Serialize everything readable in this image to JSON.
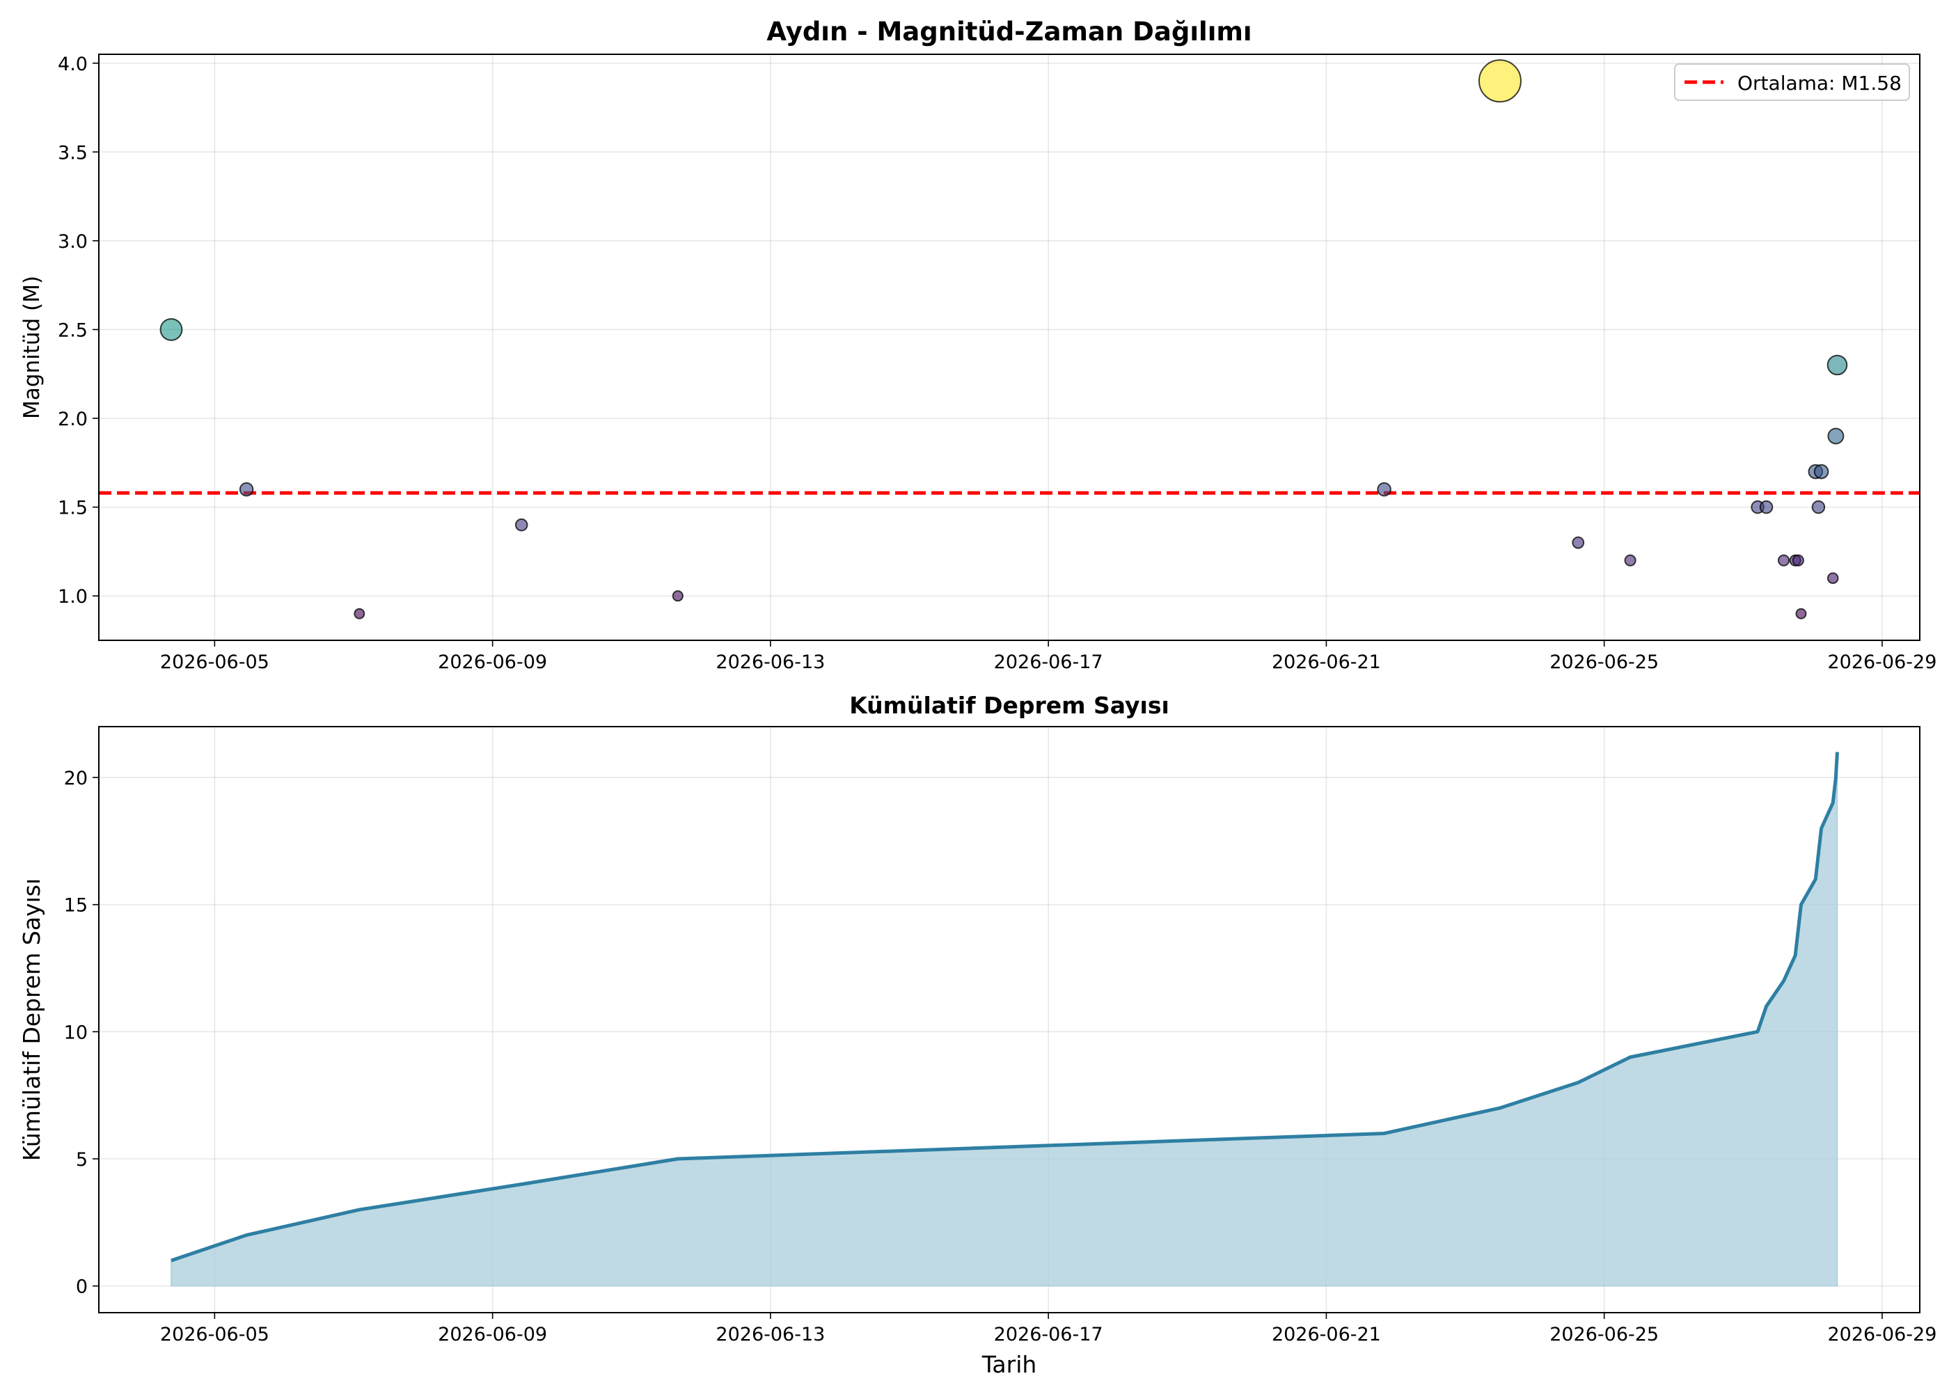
{
  "chart_data": [
    {
      "type": "scatter",
      "title": "Aydın - Magnitüd-Zaman Dağılımı",
      "xlabel": "",
      "ylabel": "Magnitüd (M)",
      "x_ticks": [
        "2026-06-05",
        "2026-06-09",
        "2026-06-13",
        "2026-06-17",
        "2026-06-21",
        "2026-06-25",
        "2026-06-29"
      ],
      "y_ticks": [
        "1.0",
        "1.5",
        "2.0",
        "2.5",
        "3.0",
        "3.5",
        "4.0"
      ],
      "xlim": [
        "2026-06-03T08:00",
        "2026-06-29T13:00"
      ],
      "ylim": [
        0.75,
        4.05
      ],
      "grid": true,
      "colormap": "viridis",
      "points": [
        {
          "t": "2026-06-04T09:00",
          "m": 2.5
        },
        {
          "t": "2026-06-05T11:00",
          "m": 1.6
        },
        {
          "t": "2026-06-07T02:00",
          "m": 0.9
        },
        {
          "t": "2026-06-09T10:00",
          "m": 1.4
        },
        {
          "t": "2026-06-11T16:00",
          "m": 1.0
        },
        {
          "t": "2026-06-21T20:00",
          "m": 1.6
        },
        {
          "t": "2026-06-23T12:00",
          "m": 3.9
        },
        {
          "t": "2026-06-24T15:00",
          "m": 1.3
        },
        {
          "t": "2026-06-25T09:00",
          "m": 1.2
        },
        {
          "t": "2026-06-27T05:00",
          "m": 1.5
        },
        {
          "t": "2026-06-27T08:00",
          "m": 1.5
        },
        {
          "t": "2026-06-27T14:00",
          "m": 1.2
        },
        {
          "t": "2026-06-27T18:00",
          "m": 1.2
        },
        {
          "t": "2026-06-27T19:00",
          "m": 1.2
        },
        {
          "t": "2026-06-27T20:00",
          "m": 0.9
        },
        {
          "t": "2026-06-28T01:00",
          "m": 1.7
        },
        {
          "t": "2026-06-28T02:00",
          "m": 1.5
        },
        {
          "t": "2026-06-28T03:00",
          "m": 1.7
        },
        {
          "t": "2026-06-28T07:00",
          "m": 1.1
        },
        {
          "t": "2026-06-28T08:00",
          "m": 1.9
        },
        {
          "t": "2026-06-28T08:30",
          "m": 2.3
        }
      ],
      "mean_line": {
        "value": 1.58,
        "color": "#ff0000",
        "label": "Ortalama: M1.58"
      },
      "legend": {
        "position": "top-right",
        "entries": [
          "Ortalama: M1.58"
        ]
      }
    },
    {
      "type": "area",
      "title": "Kümülatif Deprem Sayısı",
      "xlabel": "Tarih",
      "ylabel": "Kümülatif Deprem Sayısı",
      "x_ticks": [
        "2026-06-05",
        "2026-06-09",
        "2026-06-13",
        "2026-06-17",
        "2026-06-21",
        "2026-06-25",
        "2026-06-29"
      ],
      "y_ticks": [
        "0",
        "5",
        "10",
        "15",
        "20"
      ],
      "ylim": [
        -1.05,
        22
      ],
      "grid": true,
      "line_color": "#2e7fa3",
      "fill_color": "#a9cddb",
      "series": [
        {
          "x": [
            "2026-06-04T09:00",
            "2026-06-05T11:00",
            "2026-06-07T02:00",
            "2026-06-09T10:00",
            "2026-06-11T16:00",
            "2026-06-21T20:00",
            "2026-06-23T12:00",
            "2026-06-24T15:00",
            "2026-06-25T09:00",
            "2026-06-27T05:00",
            "2026-06-27T08:00",
            "2026-06-27T14:00",
            "2026-06-27T18:00",
            "2026-06-27T19:00",
            "2026-06-27T20:00",
            "2026-06-28T01:00",
            "2026-06-28T02:00",
            "2026-06-28T03:00",
            "2026-06-28T07:00",
            "2026-06-28T08:00",
            "2026-06-28T08:30"
          ],
          "values": [
            1,
            2,
            3,
            4,
            5,
            6,
            7,
            8,
            9,
            10,
            11,
            12,
            13,
            14,
            15,
            16,
            17,
            18,
            19,
            20,
            21
          ]
        }
      ]
    }
  ]
}
